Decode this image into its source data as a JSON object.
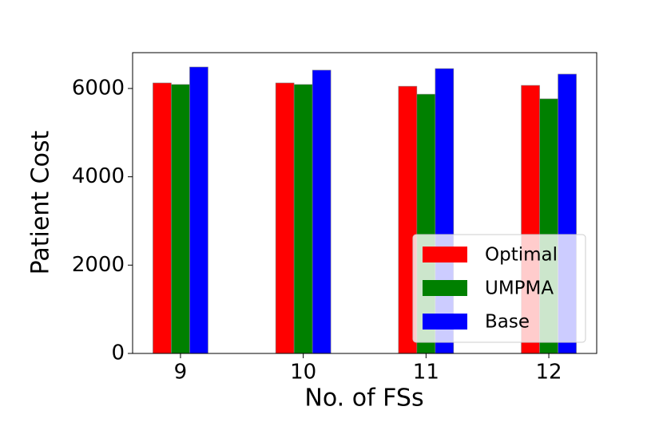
{
  "chart_data": {
    "type": "bar",
    "categories": [
      "9",
      "10",
      "11",
      "12"
    ],
    "series": [
      {
        "name": "Optimal",
        "color": "#ff0000",
        "values": [
          6125,
          6125,
          6050,
          6070
        ]
      },
      {
        "name": "UMPMA",
        "color": "#008000",
        "values": [
          6090,
          6090,
          5870,
          5765
        ]
      },
      {
        "name": "Base",
        "color": "#0000ff",
        "values": [
          6486,
          6415,
          6450,
          6325
        ]
      }
    ],
    "xlabel": "No. of FSs",
    "ylabel": "Patient Cost",
    "ylim": [
      0,
      6811
    ],
    "yticks": [
      0,
      2000,
      4000,
      6000
    ],
    "legend": "lower right",
    "grid": false
  }
}
